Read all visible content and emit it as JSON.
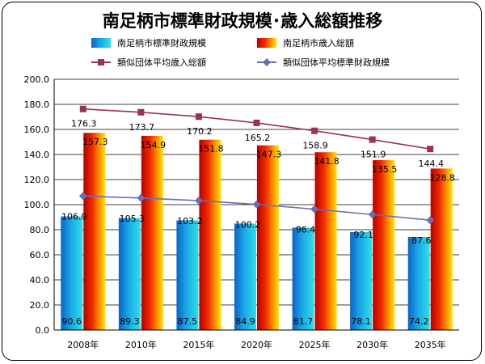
{
  "chart_data": {
    "type": "bar",
    "title": "南足柄市標準財政規模･歳入総額推移",
    "categories": [
      "2008年",
      "2010年",
      "2015年",
      "2020年",
      "2025年",
      "2030年",
      "2035年"
    ],
    "ylim": [
      0,
      200
    ],
    "yticks": [
      "0.0",
      "20.0",
      "40.0",
      "60.0",
      "80.0",
      "100.0",
      "120.0",
      "140.0",
      "160.0",
      "180.0",
      "200.0"
    ],
    "grid": true,
    "legend_position": "top",
    "series": [
      {
        "name": "南足柄市標準財政規模",
        "kind": "bar",
        "color": "#1aa7e6",
        "values": [
          90.6,
          89.3,
          87.5,
          84.9,
          81.7,
          78.1,
          74.2
        ],
        "labels": [
          "90.6",
          "89.3",
          "87.5",
          "84.9",
          "81.7",
          "78.1",
          "74.2"
        ]
      },
      {
        "name": "南足柄市歳入総額",
        "kind": "bar",
        "color": "#e81b0c",
        "values": [
          157.3,
          154.9,
          151.8,
          147.3,
          141.8,
          135.5,
          128.8
        ],
        "labels": [
          "157.3",
          "154.9",
          "151.8",
          "147.3",
          "141.8",
          "135.5",
          "128.8"
        ]
      },
      {
        "name": "類似団体平均歳入総額",
        "kind": "line",
        "color": "#9b3058",
        "marker": "square",
        "values": [
          176.3,
          173.7,
          170.2,
          165.2,
          158.9,
          151.9,
          144.4
        ],
        "labels": [
          "176.3",
          "173.7",
          "170.2",
          "165.2",
          "158.9",
          "151.9",
          "144.4"
        ]
      },
      {
        "name": "類似団体平均標準財政規模",
        "kind": "line",
        "color": "#6a6fae",
        "marker": "diamond",
        "values": [
          106.9,
          105.3,
          103.2,
          100.2,
          96.4,
          92.1,
          87.6
        ],
        "labels": [
          "106.9",
          "105.3",
          "103.2",
          "100.2",
          "96.4",
          "92.1",
          "87.6"
        ]
      }
    ]
  }
}
